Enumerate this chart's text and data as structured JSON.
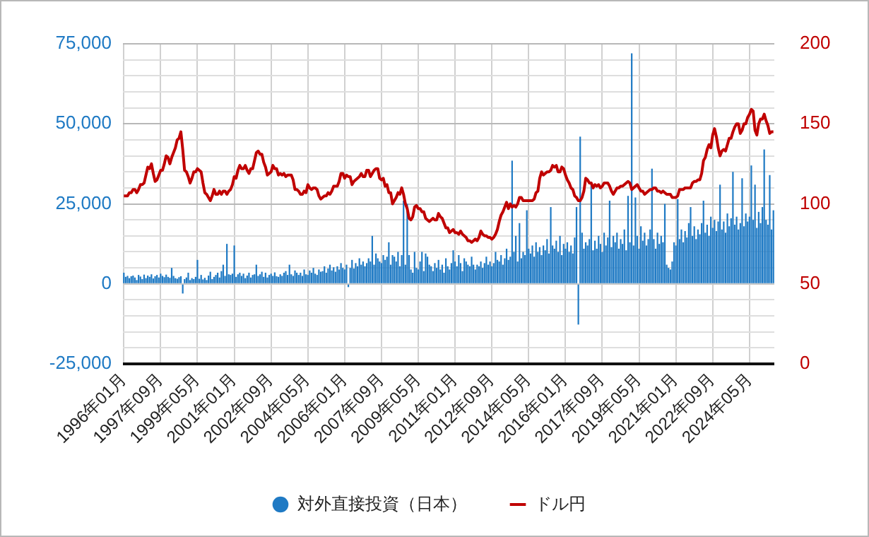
{
  "chart_data": {
    "type": "bar",
    "categories": [
      "1996年01月",
      null,
      null,
      null,
      null,
      null,
      null,
      null,
      null,
      null,
      null,
      null,
      null,
      null,
      null,
      null,
      null,
      null,
      null,
      null,
      "1997年09月",
      null,
      null,
      null,
      null,
      null,
      null,
      null,
      null,
      null,
      null,
      null,
      null,
      null,
      null,
      null,
      null,
      null,
      null,
      null,
      "1999年05月",
      null,
      null,
      null,
      null,
      null,
      null,
      null,
      null,
      null,
      null,
      null,
      null,
      null,
      null,
      null,
      null,
      null,
      null,
      null,
      "2001年01月",
      null,
      null,
      null,
      null,
      null,
      null,
      null,
      null,
      null,
      null,
      null,
      null,
      null,
      null,
      null,
      null,
      null,
      null,
      null,
      "2002年09月",
      null,
      null,
      null,
      null,
      null,
      null,
      null,
      null,
      null,
      null,
      null,
      null,
      null,
      null,
      null,
      null,
      null,
      null,
      null,
      "2004年05月",
      null,
      null,
      null,
      null,
      null,
      null,
      null,
      null,
      null,
      null,
      null,
      null,
      null,
      null,
      null,
      null,
      null,
      null,
      null,
      "2006年01月",
      null,
      null,
      null,
      null,
      null,
      null,
      null,
      null,
      null,
      null,
      null,
      null,
      null,
      null,
      null,
      null,
      null,
      null,
      null,
      "2007年09月",
      null,
      null,
      null,
      null,
      null,
      null,
      null,
      null,
      null,
      null,
      null,
      null,
      null,
      null,
      null,
      null,
      null,
      null,
      null,
      "2009年05月",
      null,
      null,
      null,
      null,
      null,
      null,
      null,
      null,
      null,
      null,
      null,
      null,
      null,
      null,
      null,
      null,
      null,
      null,
      null,
      "2011年01月",
      null,
      null,
      null,
      null,
      null,
      null,
      null,
      null,
      null,
      null,
      null,
      null,
      null,
      null,
      null,
      null,
      null,
      null,
      null,
      "2012年09月",
      null,
      null,
      null,
      null,
      null,
      null,
      null,
      null,
      null,
      null,
      null,
      null,
      null,
      null,
      null,
      null,
      null,
      null,
      null,
      "2014年05月",
      null,
      null,
      null,
      null,
      null,
      null,
      null,
      null,
      null,
      null,
      null,
      null,
      null,
      null,
      null,
      null,
      null,
      null,
      null,
      "2016年01月",
      null,
      null,
      null,
      null,
      null,
      null,
      null,
      null,
      null,
      null,
      null,
      null,
      null,
      null,
      null,
      null,
      null,
      null,
      null,
      "2017年09月",
      null,
      null,
      null,
      null,
      null,
      null,
      null,
      null,
      null,
      null,
      null,
      null,
      null,
      null,
      null,
      null,
      null,
      null,
      null,
      "2019年05月",
      null,
      null,
      null,
      null,
      null,
      null,
      null,
      null,
      null,
      null,
      null,
      null,
      null,
      null,
      null,
      null,
      null,
      null,
      null,
      "2021年01月",
      null,
      null,
      null,
      null,
      null,
      null,
      null,
      null,
      null,
      null,
      null,
      null,
      null,
      null,
      null,
      null,
      null,
      null,
      null,
      "2022年09月",
      null,
      null,
      null,
      null,
      null,
      null,
      null,
      null,
      null,
      null,
      null,
      null,
      null,
      null,
      null,
      null,
      null,
      null,
      null,
      "2024年05月",
      null,
      null,
      null,
      null,
      null,
      null,
      null,
      null,
      null,
      null,
      null,
      null,
      null
    ],
    "series": [
      {
        "name": "対外直接投資（日本）",
        "color": "#1f7ac4",
        "values": [
          3500,
          2200,
          2500,
          1800,
          2400,
          2600,
          2000,
          1200,
          2800,
          2300,
          1500,
          2900,
          1800,
          2600,
          2200,
          3000,
          1700,
          2400,
          2800,
          2000,
          3200,
          2500,
          2100,
          2900,
          2200,
          1900,
          5000,
          2500,
          1800,
          1600,
          2100,
          2400,
          -3000,
          1500,
          2000,
          3500,
          1200,
          1800,
          1500,
          2200,
          7500,
          1600,
          2800,
          1400,
          1900,
          1200,
          2600,
          3800,
          1500,
          2200,
          2800,
          3500,
          2000,
          4000,
          6000,
          2500,
          12500,
          3000,
          2800,
          3200,
          12000,
          2200,
          3000,
          3500,
          2500,
          3200,
          1800,
          2600,
          3500,
          2000,
          2800,
          3000,
          6000,
          2500,
          3000,
          3800,
          2200,
          3500,
          2000,
          2800,
          3200,
          2500,
          3600,
          2400,
          2200,
          3000,
          2500,
          3500,
          4000,
          2800,
          6000,
          3000,
          2500,
          4200,
          3500,
          2800,
          3500,
          2500,
          4500,
          3000,
          2800,
          4200,
          3500,
          5000,
          3200,
          2800,
          4500,
          3800,
          4000,
          5500,
          3500,
          4800,
          6000,
          4200,
          5200,
          3800,
          5500,
          4500,
          6500,
          5000,
          4500,
          6000,
          -1000,
          5000,
          7500,
          4800,
          6500,
          5500,
          8000,
          6000,
          7000,
          5500,
          6500,
          8000,
          7000,
          15000,
          6000,
          9500,
          8000,
          7000,
          6500,
          9000,
          7500,
          8500,
          13000,
          6000,
          9000,
          8500,
          7000,
          10000,
          5500,
          9000,
          26000,
          6000,
          25000,
          9000,
          4500,
          3500,
          10000,
          5000,
          4500,
          7000,
          10000,
          4000,
          9500,
          8500,
          6000,
          5500,
          4000,
          6500,
          5000,
          7500,
          4500,
          6000,
          3500,
          8000,
          5500,
          4500,
          6500,
          10500,
          7000,
          5500,
          9000,
          6500,
          4000,
          8000,
          7000,
          6000,
          5500,
          8500,
          6000,
          4500,
          6000,
          5500,
          7000,
          5000,
          6500,
          8500,
          6000,
          7000,
          5500,
          6500,
          10000,
          7500,
          7000,
          9000,
          6000,
          8000,
          11000,
          7500,
          8500,
          38500,
          10000,
          15000,
          7000,
          19000,
          8000,
          10000,
          9000,
          23000,
          11000,
          9500,
          12000,
          8500,
          13000,
          10000,
          11500,
          9000,
          12000,
          10500,
          14000,
          9500,
          24000,
          12000,
          11000,
          13500,
          10000,
          15000,
          9000,
          12500,
          11000,
          13000,
          10000,
          12000,
          9500,
          14500,
          24000,
          -12700,
          46000,
          16000,
          11000,
          13000,
          12000,
          14000,
          31000,
          10500,
          13500,
          11000,
          15000,
          12500,
          10000,
          16000,
          12000,
          14500,
          26000,
          11500,
          15000,
          13000,
          16000,
          11000,
          14000,
          12500,
          17000,
          10500,
          27500,
          13000,
          72000,
          12000,
          27000,
          15000,
          11000,
          18000,
          13500,
          16000,
          12000,
          14000,
          17000,
          36000,
          14000,
          11000,
          16000,
          12500,
          15000,
          13000,
          25000,
          6000,
          5000,
          4500,
          7000,
          13000,
          12000,
          26500,
          14000,
          17000,
          13000,
          16500,
          14500,
          19000,
          24000,
          15000,
          18000,
          14000,
          17000,
          15500,
          19000,
          26000,
          16000,
          18500,
          15000,
          21000,
          17500,
          20000,
          16500,
          19500,
          31000,
          17000,
          19500,
          16000,
          22000,
          18000,
          20500,
          35000,
          18500,
          21000,
          17000,
          19000,
          33000,
          18000,
          22000,
          19500,
          21000,
          37000,
          20000,
          31000,
          17500,
          22500,
          19000,
          24000,
          42000,
          20000,
          18500,
          34000,
          17000,
          23000
        ]
      },
      {
        "name": "ドル円",
        "type": "line",
        "axis": "y2",
        "color": "#c00000",
        "values": [
          105,
          105,
          105,
          107,
          107,
          109,
          109,
          107,
          109,
          112,
          112,
          113,
          118,
          123,
          122,
          125,
          119,
          114,
          115,
          118,
          121,
          121,
          125,
          130,
          129,
          125,
          129,
          132,
          135,
          140,
          141,
          145,
          134,
          121,
          120,
          117,
          113,
          116,
          120,
          120,
          122,
          121,
          120,
          113,
          107,
          106,
          104,
          102,
          105,
          109,
          106,
          106,
          108,
          106,
          108,
          108,
          106,
          108,
          109,
          112,
          117,
          116,
          121,
          124,
          122,
          122,
          124,
          121,
          119,
          122,
          122,
          127,
          132,
          133,
          131,
          131,
          126,
          123,
          118,
          119,
          120,
          124,
          122,
          122,
          118,
          119,
          118,
          119,
          117,
          118,
          118,
          118,
          115,
          109,
          109,
          108,
          106,
          106,
          108,
          107,
          112,
          110,
          109,
          110,
          110,
          109,
          105,
          103,
          104,
          105,
          105,
          107,
          106,
          108,
          111,
          111,
          111,
          114,
          119,
          119,
          116,
          118,
          117,
          117,
          112,
          114,
          115,
          116,
          117,
          119,
          117,
          117,
          121,
          121,
          117,
          119,
          121,
          122,
          122,
          116,
          115,
          116,
          111,
          112,
          107,
          107,
          100,
          102,
          104,
          107,
          106,
          110,
          106,
          100,
          97,
          91,
          90,
          92,
          98,
          99,
          97,
          97,
          95,
          95,
          91,
          90,
          89,
          90,
          91,
          90,
          90,
          94,
          92,
          91,
          88,
          85,
          85,
          82,
          83,
          84,
          82,
          82,
          81,
          83,
          81,
          80,
          79,
          77,
          77,
          76,
          77,
          78,
          77,
          79,
          83,
          81,
          80,
          80,
          79,
          79,
          78,
          79,
          81,
          84,
          89,
          93,
          95,
          98,
          101,
          97,
          100,
          98,
          99,
          98,
          100,
          104,
          104,
          102,
          102,
          102,
          102,
          102,
          102,
          103,
          107,
          108,
          116,
          120,
          118,
          119,
          120,
          120,
          121,
          124,
          123,
          124,
          120,
          120,
          123,
          122,
          118,
          115,
          113,
          110,
          109,
          105,
          104,
          102,
          102,
          104,
          108,
          116,
          115,
          113,
          113,
          110,
          112,
          111,
          112,
          110,
          111,
          113,
          113,
          113,
          111,
          108,
          106,
          108,
          110,
          110,
          111,
          111,
          112,
          113,
          114,
          113,
          109,
          110,
          111,
          112,
          110,
          108,
          108,
          106,
          107,
          108,
          109,
          109,
          110,
          110,
          108,
          108,
          107,
          108,
          107,
          106,
          106,
          106,
          104,
          104,
          104,
          105,
          109,
          109,
          109,
          110,
          110,
          110,
          110,
          113,
          114,
          114,
          115,
          115,
          119,
          127,
          129,
          134,
          137,
          135,
          143,
          147,
          142,
          135,
          130,
          133,
          134,
          133,
          137,
          141,
          141,
          145,
          148,
          150,
          150,
          144,
          146,
          150,
          150,
          154,
          156,
          159,
          158,
          146,
          143,
          150,
          153,
          153,
          156,
          152,
          149,
          144,
          145,
          145
        ]
      }
    ],
    "ylim": [
      -25000,
      75000
    ],
    "yticks": [
      {
        "value": -25000,
        "label": "-25,000"
      },
      {
        "value": -20000,
        "label": null
      },
      {
        "value": -15000,
        "label": null
      },
      {
        "value": -10000,
        "label": null
      },
      {
        "value": -5000,
        "label": null
      },
      0,
      {
        "value": 5000,
        "label": null
      },
      {
        "value": 10000,
        "label": null
      },
      {
        "value": 15000,
        "label": null
      },
      {
        "value": 20000,
        "label": null
      },
      {
        "value": 25000,
        "label": "25,000"
      },
      {
        "value": 30000,
        "label": null
      },
      {
        "value": 35000,
        "label": null
      },
      {
        "value": 40000,
        "label": null
      },
      {
        "value": 45000,
        "label": null
      },
      {
        "value": 50000,
        "label": "50,000"
      },
      {
        "value": 55000,
        "label": null
      },
      {
        "value": 60000,
        "label": null
      },
      {
        "value": 65000,
        "label": null
      },
      {
        "value": 70000,
        "label": null
      },
      {
        "value": 75000,
        "label": "75,000"
      }
    ],
    "y2lim": [
      0,
      200
    ],
    "y2ticks": [
      0,
      50,
      100,
      150,
      200
    ],
    "grid": true,
    "legend": "bottom",
    "marker": "none"
  }
}
